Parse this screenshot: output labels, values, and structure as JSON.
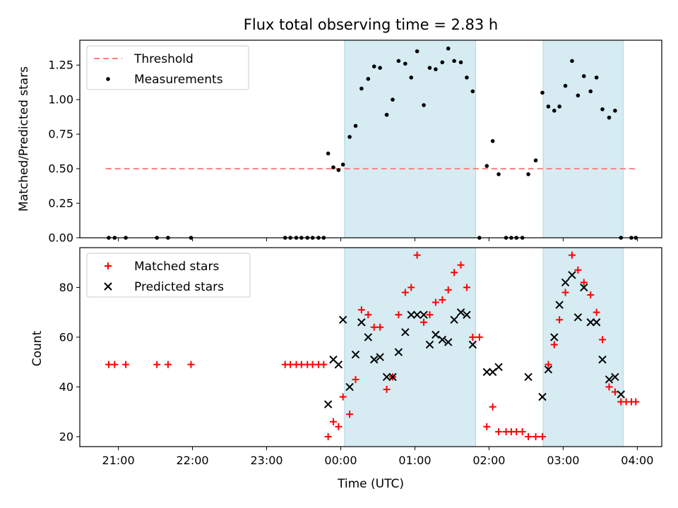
{
  "figure": {
    "title": "Flux total observing time = 2.83 h",
    "xlabel": "Time (UTC)",
    "x_ticks": [
      {
        "label": "21:00",
        "hour": 21.0
      },
      {
        "label": "22:00",
        "hour": 22.0
      },
      {
        "label": "23:00",
        "hour": 23.0
      },
      {
        "label": "00:00",
        "hour": 24.0
      },
      {
        "label": "01:00",
        "hour": 25.0
      },
      {
        "label": "02:00",
        "hour": 26.0
      },
      {
        "label": "03:00",
        "hour": 27.0
      },
      {
        "label": "04:00",
        "hour": 28.0
      }
    ],
    "xlim_hours": [
      20.48,
      28.33
    ],
    "observing_windows_hours": [
      [
        24.05,
        25.82
      ],
      [
        26.73,
        27.81
      ]
    ],
    "band_color": "#add8e6",
    "threshold_color": "#ff7f7f",
    "measurement_color": "#000000",
    "matched_color": "#ff0000",
    "predicted_color": "#000000"
  },
  "chart_data": [
    {
      "type": "scatter",
      "ylabel": "Matched/Predicted stars",
      "ylim": [
        0,
        1.43
      ],
      "y_ticks": [
        "0.00",
        "0.25",
        "0.50",
        "0.75",
        "1.00",
        "1.25"
      ],
      "legend": {
        "placement": "top-left",
        "entries": [
          "Threshold",
          "Measurements"
        ]
      },
      "threshold": {
        "name": "Threshold",
        "value": 0.5,
        "x_range_hours": [
          20.83,
          27.98
        ]
      },
      "series": [
        {
          "name": "Measurements",
          "x_hours": [
            20.87,
            20.95,
            21.1,
            21.52,
            21.67,
            21.98,
            23.25,
            23.32,
            23.4,
            23.47,
            23.55,
            23.62,
            23.7,
            23.77,
            23.83,
            23.9,
            23.97,
            24.03,
            24.12,
            24.2,
            24.28,
            24.37,
            24.45,
            24.53,
            24.62,
            24.7,
            24.78,
            24.87,
            24.95,
            25.03,
            25.12,
            25.2,
            25.28,
            25.37,
            25.45,
            25.53,
            25.62,
            25.7,
            25.78,
            25.87,
            25.97,
            26.05,
            26.13,
            26.23,
            26.3,
            26.37,
            26.45,
            26.53,
            26.63,
            26.72,
            26.8,
            26.88,
            26.95,
            27.03,
            27.12,
            27.2,
            27.28,
            27.37,
            27.45,
            27.53,
            27.62,
            27.7,
            27.78,
            27.92,
            27.98
          ],
          "y": [
            0,
            0,
            0,
            0,
            0,
            0,
            0,
            0,
            0,
            0,
            0,
            0,
            0,
            0,
            0.61,
            0.51,
            0.49,
            0.53,
            0.73,
            0.81,
            1.08,
            1.15,
            1.24,
            1.23,
            0.89,
            1.0,
            1.28,
            1.26,
            1.16,
            1.35,
            0.96,
            1.23,
            1.22,
            1.27,
            1.37,
            1.28,
            1.27,
            1.16,
            1.06,
            0,
            0.52,
            0.7,
            0.46,
            0,
            0,
            0,
            0,
            0.46,
            0.56,
            1.05,
            0.95,
            0.92,
            0.95,
            1.1,
            1.28,
            1.03,
            1.17,
            1.06,
            1.16,
            0.93,
            0.87,
            0.92,
            0,
            0,
            0
          ]
        }
      ]
    },
    {
      "type": "scatter",
      "ylabel": "Count",
      "ylim": [
        16,
        96
      ],
      "y_ticks": [
        "20",
        "40",
        "60",
        "80"
      ],
      "legend": {
        "placement": "top-left",
        "entries": [
          "Matched stars",
          "Predicted stars"
        ]
      },
      "series": [
        {
          "name": "Matched stars",
          "marker": "plus",
          "x_hours": [
            20.87,
            20.95,
            21.1,
            21.52,
            21.67,
            21.98,
            23.25,
            23.32,
            23.4,
            23.47,
            23.55,
            23.62,
            23.7,
            23.77,
            23.83,
            23.9,
            23.97,
            24.03,
            24.12,
            24.2,
            24.28,
            24.37,
            24.45,
            24.53,
            24.62,
            24.7,
            24.78,
            24.87,
            24.95,
            25.03,
            25.12,
            25.2,
            25.28,
            25.37,
            25.45,
            25.53,
            25.62,
            25.7,
            25.78,
            25.87,
            25.97,
            26.05,
            26.13,
            26.23,
            26.3,
            26.37,
            26.45,
            26.53,
            26.63,
            26.72,
            26.8,
            26.88,
            26.95,
            27.03,
            27.12,
            27.2,
            27.28,
            27.37,
            27.45,
            27.53,
            27.62,
            27.7,
            27.78,
            27.85,
            27.92,
            27.98
          ],
          "y": [
            49,
            49,
            49,
            49,
            49,
            49,
            49,
            49,
            49,
            49,
            49,
            49,
            49,
            49,
            20,
            26,
            24,
            36,
            29,
            43,
            71,
            69,
            64,
            64,
            39,
            44,
            69,
            78,
            80,
            93,
            66,
            69,
            74,
            75,
            79,
            86,
            89,
            80,
            60,
            60,
            24,
            32,
            22,
            22,
            22,
            22,
            22,
            20,
            20,
            20,
            49,
            57,
            67,
            78,
            93,
            87,
            82,
            77,
            70,
            59,
            40,
            38,
            34,
            34,
            34,
            34
          ]
        },
        {
          "name": "Predicted stars",
          "marker": "x",
          "x_hours": [
            23.83,
            23.9,
            23.97,
            24.03,
            24.12,
            24.2,
            24.28,
            24.37,
            24.45,
            24.53,
            24.62,
            24.7,
            24.78,
            24.87,
            24.95,
            25.03,
            25.12,
            25.2,
            25.28,
            25.37,
            25.45,
            25.53,
            25.62,
            25.7,
            25.78,
            25.97,
            26.05,
            26.13,
            26.53,
            26.72,
            26.8,
            26.88,
            26.95,
            27.03,
            27.12,
            27.2,
            27.28,
            27.37,
            27.45,
            27.53,
            27.62,
            27.7,
            27.78
          ],
          "y": [
            33,
            51,
            49,
            67,
            40,
            53,
            66,
            60,
            51,
            52,
            44,
            44,
            54,
            62,
            69,
            69,
            69,
            57,
            61,
            59,
            58,
            67,
            70,
            69,
            57,
            46,
            46,
            48,
            44,
            36,
            47,
            60,
            73,
            82,
            85,
            68,
            80,
            66,
            66,
            51,
            43,
            44,
            37
          ]
        }
      ]
    }
  ]
}
